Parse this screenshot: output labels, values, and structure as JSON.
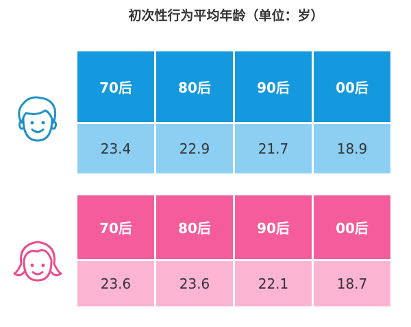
{
  "title": "初次性行为平均年龄（单位：岁）",
  "tables": [
    {
      "header": [
        "70后",
        "80后",
        "90后",
        "00后"
      ],
      "values": [
        23.4,
        22.9,
        21.7,
        18.9
      ]
    },
    {
      "header": [
        "70后",
        "80后",
        "90后",
        "00后"
      ],
      "values": [
        23.6,
        23.6,
        22.1,
        18.7
      ]
    }
  ]
}
